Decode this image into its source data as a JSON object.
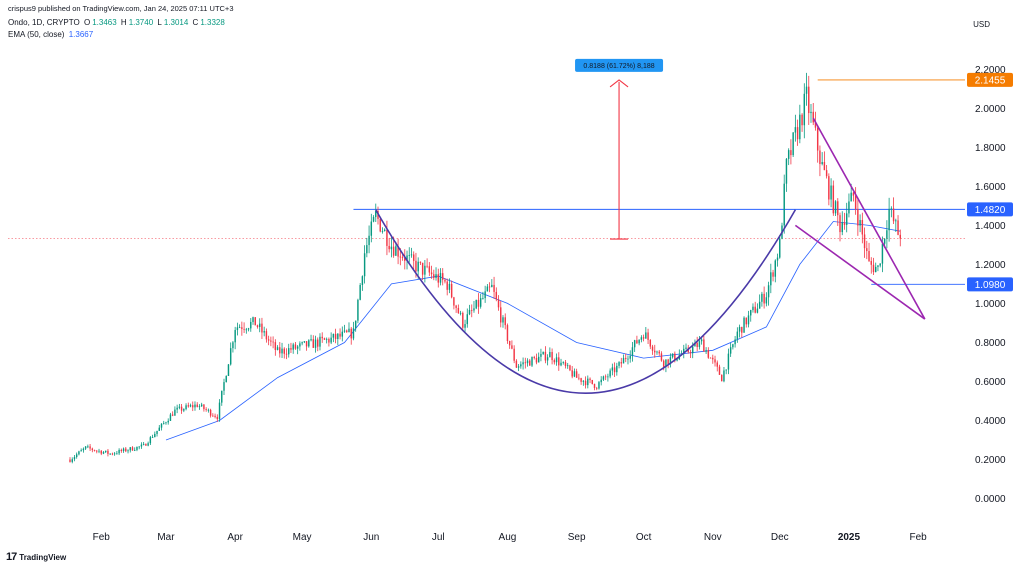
{
  "header": {
    "publisher": "crispus9 published on TradingView.com, Jan 24, 2025 07:11 UTC+3",
    "symbol": "Ondo, 1D, CRYPTO",
    "open_label": "O",
    "open": "1.3463",
    "high_label": "H",
    "high": "1.3740",
    "low_label": "L",
    "low": "1.3014",
    "close_label": "C",
    "close": "1.3328",
    "ema_label": "EMA (50, close)",
    "ema_value": "1.3667"
  },
  "currency": "USD",
  "logo_text": "TradingView",
  "colors": {
    "up": "#089981",
    "down": "#f23645",
    "ema": "#2962ff",
    "cup": "#4a3aa8",
    "wedge": "#9c27b0",
    "level_line": "#2962ff",
    "resistance_tag": "#f57c00",
    "measure": "#f23645",
    "measure_box": "#2196f3"
  },
  "chart_data": {
    "type": "candlestick",
    "y_axis": {
      "range": [
        -0.12,
        2.35
      ],
      "ticks": [
        "2.2000",
        "2.0000",
        "1.8000",
        "1.6000",
        "1.4000",
        "1.2000",
        "1.0000",
        "0.8000",
        "0.6000",
        "0.4000",
        "0.2000",
        "0.0000"
      ]
    },
    "x_axis": {
      "months": [
        {
          "label": "Feb",
          "date": "2024-02-01"
        },
        {
          "label": "Mar",
          "date": "2024-03-01"
        },
        {
          "label": "Apr",
          "date": "2024-04-01"
        },
        {
          "label": "May",
          "date": "2024-05-01"
        },
        {
          "label": "Jun",
          "date": "2024-06-01"
        },
        {
          "label": "Jul",
          "date": "2024-07-01"
        },
        {
          "label": "Aug",
          "date": "2024-08-01"
        },
        {
          "label": "Sep",
          "date": "2024-09-01"
        },
        {
          "label": "Oct",
          "date": "2024-10-01"
        },
        {
          "label": "Nov",
          "date": "2024-11-01"
        },
        {
          "label": "Dec",
          "date": "2024-12-01"
        },
        {
          "label": "2025",
          "date": "2025-01-01",
          "bold": true
        },
        {
          "label": "Feb",
          "date": "2025-02-01"
        }
      ],
      "first_date": "2024-01-18",
      "last_date": "2025-02-22"
    },
    "price_path": [
      [
        "2024-01-18",
        0.2
      ],
      [
        "2024-01-25",
        0.26
      ],
      [
        "2024-02-05",
        0.23
      ],
      [
        "2024-02-20",
        0.27
      ],
      [
        "2024-03-05",
        0.45
      ],
      [
        "2024-03-15",
        0.48
      ],
      [
        "2024-03-24",
        0.42
      ],
      [
        "2024-04-01",
        0.88
      ],
      [
        "2024-04-10",
        0.9
      ],
      [
        "2024-04-20",
        0.75
      ],
      [
        "2024-05-01",
        0.78
      ],
      [
        "2024-05-15",
        0.82
      ],
      [
        "2024-05-24",
        0.85
      ],
      [
        "2024-05-29",
        1.26
      ],
      [
        "2024-06-03",
        1.45
      ],
      [
        "2024-06-10",
        1.3
      ],
      [
        "2024-06-20",
        1.2
      ],
      [
        "2024-07-05",
        1.1
      ],
      [
        "2024-07-12",
        0.9
      ],
      [
        "2024-07-25",
        1.08
      ],
      [
        "2024-08-05",
        0.68
      ],
      [
        "2024-08-20",
        0.74
      ],
      [
        "2024-09-01",
        0.62
      ],
      [
        "2024-09-10",
        0.58
      ],
      [
        "2024-09-20",
        0.68
      ],
      [
        "2024-10-01",
        0.85
      ],
      [
        "2024-10-10",
        0.7
      ],
      [
        "2024-10-20",
        0.75
      ],
      [
        "2024-10-27",
        0.8
      ],
      [
        "2024-11-05",
        0.62
      ],
      [
        "2024-11-12",
        0.85
      ],
      [
        "2024-11-25",
        1.05
      ],
      [
        "2024-12-01",
        1.3
      ],
      [
        "2024-12-04",
        1.7
      ],
      [
        "2024-12-13",
        2.05
      ],
      [
        "2024-12-20",
        1.7
      ],
      [
        "2024-12-28",
        1.4
      ],
      [
        "2025-01-03",
        1.55
      ],
      [
        "2025-01-10",
        1.2
      ],
      [
        "2025-01-14",
        1.18
      ],
      [
        "2025-01-19",
        1.48
      ],
      [
        "2025-01-24",
        1.33
      ]
    ],
    "ema_path": [
      [
        "2024-03-01",
        0.3
      ],
      [
        "2024-03-25",
        0.4
      ],
      [
        "2024-04-20",
        0.62
      ],
      [
        "2024-05-20",
        0.8
      ],
      [
        "2024-06-10",
        1.1
      ],
      [
        "2024-07-01",
        1.14
      ],
      [
        "2024-08-01",
        1.0
      ],
      [
        "2024-09-01",
        0.8
      ],
      [
        "2024-10-01",
        0.72
      ],
      [
        "2024-11-01",
        0.76
      ],
      [
        "2024-11-25",
        0.88
      ],
      [
        "2024-12-10",
        1.2
      ],
      [
        "2024-12-25",
        1.42
      ],
      [
        "2025-01-10",
        1.4
      ],
      [
        "2025-01-24",
        1.37
      ]
    ],
    "horizontal_levels": [
      {
        "value": 2.1455,
        "label": "2.1455",
        "color": "#f57c00",
        "start": "2024-12-18"
      },
      {
        "value": 1.482,
        "label": "1.4820",
        "color": "#2962ff",
        "start": "2024-05-24"
      },
      {
        "value": 1.098,
        "label": "1.0980",
        "color": "#2962ff",
        "start": "2025-01-11"
      }
    ],
    "last_price": 1.3328,
    "cup": {
      "from": [
        "2024-06-03",
        1.48
      ],
      "bottom": [
        "2024-09-05",
        0.54
      ],
      "to": [
        "2024-12-08",
        1.48
      ]
    },
    "wedge": {
      "upper": [
        [
          "2024-12-16",
          1.95
        ],
        [
          "2025-02-04",
          0.92
        ]
      ],
      "lower": [
        [
          "2024-12-08",
          1.4
        ],
        [
          "2025-02-04",
          0.92
        ]
      ]
    },
    "measure": {
      "label": "0.8188 (61.72%) 8,188",
      "date": "2024-09-20",
      "from": 1.33,
      "to": 2.1455
    }
  }
}
